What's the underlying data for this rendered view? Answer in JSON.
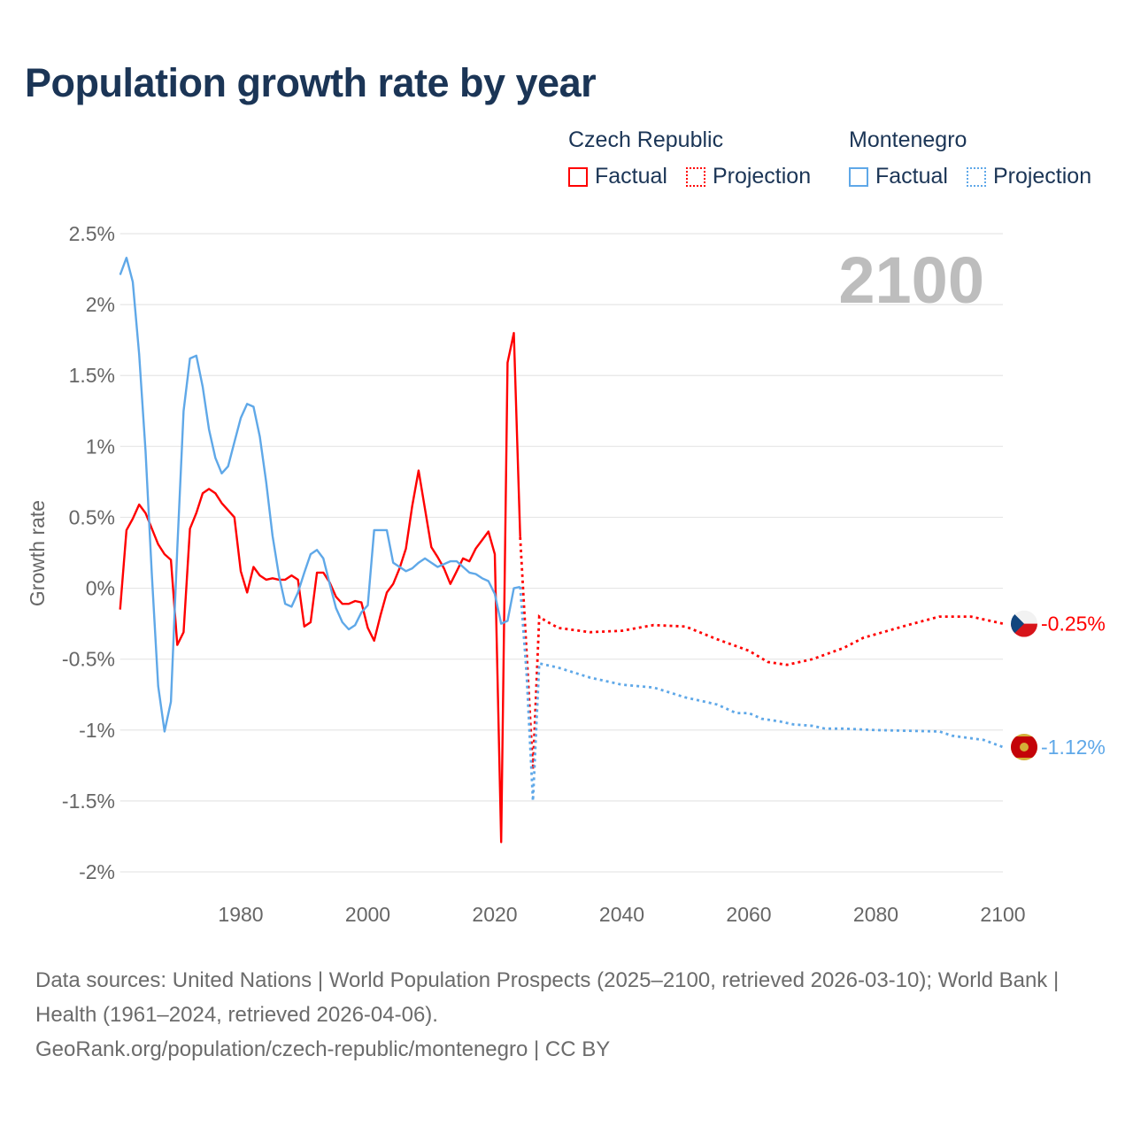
{
  "title": "Population growth rate by year",
  "legend": {
    "groups": [
      {
        "name": "Czech Republic",
        "factual": "Factual",
        "projection": "Projection",
        "color": "#ff0000"
      },
      {
        "name": "Montenegro",
        "factual": "Factual",
        "projection": "Projection",
        "color": "#5fa8e8"
      }
    ]
  },
  "footer": {
    "sources": "Data sources: United Nations | World Population Prospects (2025–2100, retrieved 2026-03-10); World Bank | Health (1961–2024, retrieved 2026-04-06).",
    "link": "GeoRank.org/population/czech-republic/montenegro | CC BY"
  },
  "chart_data": {
    "type": "line",
    "title": "Population growth rate by year",
    "xlabel": "",
    "ylabel": "Growth rate",
    "current_year_label": "2100",
    "xlim": [
      1961,
      2100
    ],
    "ylim": [
      -2,
      2.5
    ],
    "x_ticks": [
      1980,
      2000,
      2020,
      2040,
      2060,
      2080,
      2100
    ],
    "y_ticks": [
      2.5,
      2,
      1.5,
      1,
      0.5,
      0,
      -0.5,
      -1,
      -1.5,
      -2
    ],
    "y_tick_labels": [
      "2.5%",
      "2%",
      "1.5%",
      "1%",
      "0.5%",
      "0%",
      "-0.5%",
      "-1%",
      "-1.5%",
      "-2%"
    ],
    "grid": true,
    "legend_placement": "top-right",
    "series": [
      {
        "name": "Czech Republic",
        "color": "#ff0000",
        "end_label": "-0.25%",
        "factual": {
          "x": [
            1961,
            1962,
            1963,
            1964,
            1965,
            1966,
            1967,
            1968,
            1969,
            1970,
            1971,
            1972,
            1973,
            1974,
            1975,
            1976,
            1977,
            1978,
            1979,
            1980,
            1981,
            1982,
            1983,
            1984,
            1985,
            1986,
            1987,
            1988,
            1989,
            1990,
            1991,
            1992,
            1993,
            1994,
            1995,
            1996,
            1997,
            1998,
            1999,
            2000,
            2001,
            2002,
            2003,
            2004,
            2005,
            2006,
            2007,
            2008,
            2009,
            2010,
            2011,
            2012,
            2013,
            2014,
            2015,
            2016,
            2017,
            2018,
            2019,
            2020,
            2021,
            2022,
            2023,
            2024
          ],
          "y": [
            -0.15,
            0.41,
            0.49,
            0.59,
            0.53,
            0.42,
            0.31,
            0.24,
            0.2,
            -0.4,
            -0.31,
            0.42,
            0.53,
            0.67,
            0.7,
            0.67,
            0.6,
            0.55,
            0.5,
            0.12,
            -0.03,
            0.15,
            0.09,
            0.06,
            0.07,
            0.06,
            0.06,
            0.09,
            0.06,
            -0.27,
            -0.24,
            0.11,
            0.11,
            0.04,
            -0.06,
            -0.11,
            -0.11,
            -0.09,
            -0.1,
            -0.28,
            -0.37,
            -0.19,
            -0.03,
            0.03,
            0.14,
            0.28,
            0.58,
            0.83,
            0.56,
            0.29,
            0.22,
            0.14,
            0.03,
            0.12,
            0.21,
            0.19,
            0.28,
            0.34,
            0.4,
            0.24,
            -1.79,
            1.59,
            1.8,
            0.36
          ]
        },
        "projection": {
          "x": [
            2024,
            2025,
            2026,
            2027,
            2028,
            2030,
            2035,
            2040,
            2045,
            2050,
            2055,
            2060,
            2063,
            2066,
            2070,
            2075,
            2078,
            2085,
            2090,
            2095,
            2098,
            2100
          ],
          "y": [
            0.36,
            -0.45,
            -1.28,
            -0.2,
            -0.23,
            -0.28,
            -0.31,
            -0.3,
            -0.26,
            -0.27,
            -0.36,
            -0.44,
            -0.52,
            -0.54,
            -0.5,
            -0.42,
            -0.35,
            -0.26,
            -0.2,
            -0.2,
            -0.23,
            -0.25
          ]
        }
      },
      {
        "name": "Montenegro",
        "color": "#5fa8e8",
        "end_label": "-1.12%",
        "factual": {
          "x": [
            1961,
            1962,
            1963,
            1964,
            1965,
            1966,
            1967,
            1968,
            1969,
            1970,
            1971,
            1972,
            1973,
            1974,
            1975,
            1976,
            1977,
            1978,
            1979,
            1980,
            1981,
            1982,
            1983,
            1984,
            1985,
            1986,
            1987,
            1988,
            1989,
            1990,
            1991,
            1992,
            1993,
            1994,
            1995,
            1996,
            1997,
            1998,
            1999,
            2000,
            2001,
            2002,
            2003,
            2004,
            2005,
            2006,
            2007,
            2008,
            2009,
            2010,
            2011,
            2012,
            2013,
            2014,
            2015,
            2016,
            2017,
            2018,
            2019,
            2020,
            2021,
            2022,
            2023,
            2024
          ],
          "y": [
            2.21,
            2.33,
            2.16,
            1.65,
            0.97,
            0.09,
            -0.69,
            -1.01,
            -0.8,
            0.28,
            1.25,
            1.62,
            1.64,
            1.42,
            1.12,
            0.92,
            0.81,
            0.86,
            1.03,
            1.2,
            1.3,
            1.28,
            1.07,
            0.75,
            0.37,
            0.09,
            -0.11,
            -0.13,
            -0.03,
            0.11,
            0.24,
            0.27,
            0.21,
            0.03,
            -0.14,
            -0.24,
            -0.29,
            -0.26,
            -0.17,
            -0.12,
            0.41,
            0.41,
            0.41,
            0.18,
            0.15,
            0.12,
            0.14,
            0.18,
            0.21,
            0.18,
            0.15,
            0.17,
            0.19,
            0.19,
            0.15,
            0.11,
            0.1,
            0.07,
            0.05,
            -0.04,
            -0.25,
            -0.23,
            0.0,
            0.01
          ]
        },
        "projection": {
          "x": [
            2024,
            2025,
            2026,
            2027,
            2030,
            2035,
            2040,
            2045,
            2050,
            2055,
            2058,
            2060,
            2062,
            2065,
            2067,
            2070,
            2072,
            2075,
            2080,
            2090,
            2092,
            2097,
            2100
          ],
          "y": [
            0.01,
            -0.6,
            -1.5,
            -0.53,
            -0.56,
            -0.63,
            -0.68,
            -0.7,
            -0.77,
            -0.82,
            -0.88,
            -0.88,
            -0.92,
            -0.94,
            -0.96,
            -0.97,
            -0.99,
            -0.99,
            -1.0,
            -1.01,
            -1.04,
            -1.07,
            -1.12
          ]
        }
      }
    ]
  }
}
